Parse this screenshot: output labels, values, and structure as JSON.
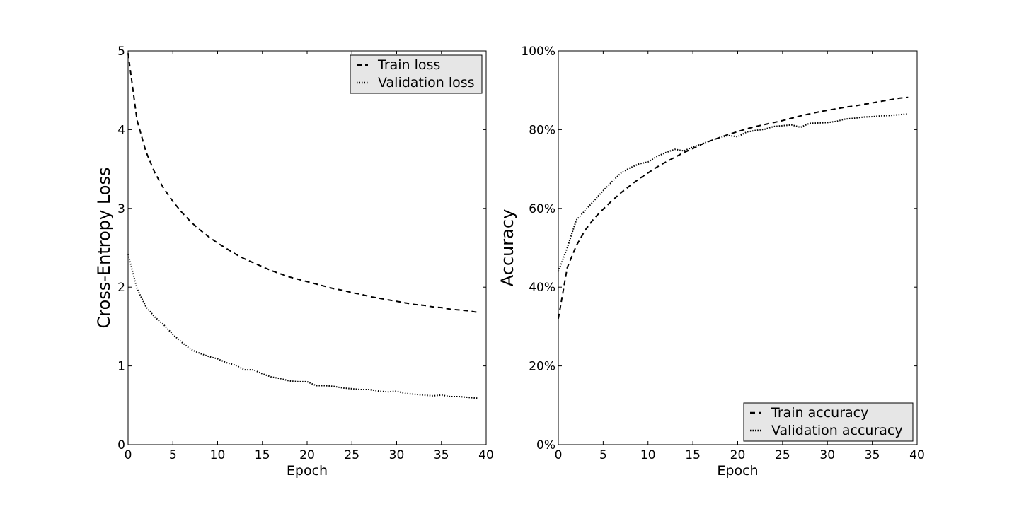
{
  "chart_data": [
    {
      "type": "line",
      "title": "",
      "xlabel": "Epoch",
      "ylabel": "Cross-Entropy Loss",
      "xlim": [
        0,
        40
      ],
      "ylim": [
        0,
        5
      ],
      "xticks": [
        0,
        5,
        10,
        15,
        20,
        25,
        30,
        35,
        40
      ],
      "xtick_labels": [
        "0",
        "5",
        "10",
        "15",
        "20",
        "25",
        "30",
        "35",
        "40"
      ],
      "yticks": [
        0,
        1,
        2,
        3,
        4,
        5
      ],
      "ytick_labels": [
        "0",
        "1",
        "2",
        "3",
        "4",
        "5"
      ],
      "grid": false,
      "legend_position": "top-right",
      "x": [
        0,
        1,
        2,
        3,
        4,
        5,
        6,
        7,
        8,
        9,
        10,
        11,
        12,
        13,
        14,
        15,
        16,
        17,
        18,
        19,
        20,
        21,
        22,
        23,
        24,
        25,
        26,
        27,
        28,
        29,
        30,
        31,
        32,
        33,
        34,
        35,
        36,
        37,
        38,
        39
      ],
      "series": [
        {
          "name": "Train loss",
          "style": "dashed",
          "color": "#000000",
          "values": [
            4.97,
            4.12,
            3.72,
            3.45,
            3.25,
            3.09,
            2.95,
            2.83,
            2.73,
            2.64,
            2.56,
            2.49,
            2.42,
            2.36,
            2.31,
            2.26,
            2.21,
            2.17,
            2.13,
            2.1,
            2.07,
            2.04,
            2.01,
            1.98,
            1.96,
            1.93,
            1.91,
            1.88,
            1.86,
            1.84,
            1.82,
            1.8,
            1.78,
            1.77,
            1.75,
            1.74,
            1.72,
            1.71,
            1.7,
            1.68
          ]
        },
        {
          "name": "Validation loss",
          "style": "dotted",
          "color": "#000000",
          "values": [
            2.42,
            1.98,
            1.75,
            1.62,
            1.52,
            1.4,
            1.3,
            1.21,
            1.16,
            1.12,
            1.09,
            1.04,
            1.01,
            0.95,
            0.95,
            0.9,
            0.86,
            0.84,
            0.81,
            0.8,
            0.8,
            0.75,
            0.75,
            0.74,
            0.72,
            0.71,
            0.7,
            0.7,
            0.68,
            0.67,
            0.68,
            0.65,
            0.64,
            0.63,
            0.62,
            0.63,
            0.61,
            0.61,
            0.6,
            0.59
          ]
        }
      ]
    },
    {
      "type": "line",
      "title": "",
      "xlabel": "Epoch",
      "ylabel": "Accuracy",
      "xlim": [
        0,
        40
      ],
      "ylim": [
        0,
        100
      ],
      "xticks": [
        0,
        5,
        10,
        15,
        20,
        25,
        30,
        35,
        40
      ],
      "xtick_labels": [
        "0",
        "5",
        "10",
        "15",
        "20",
        "25",
        "30",
        "35",
        "40"
      ],
      "yticks": [
        0,
        20,
        40,
        60,
        80,
        100
      ],
      "ytick_labels": [
        "0%",
        "20%",
        "40%",
        "60%",
        "80%",
        "100%"
      ],
      "grid": false,
      "legend_position": "bottom-right",
      "x": [
        0,
        1,
        2,
        3,
        4,
        5,
        6,
        7,
        8,
        9,
        10,
        11,
        12,
        13,
        14,
        15,
        16,
        17,
        18,
        19,
        20,
        21,
        22,
        23,
        24,
        25,
        26,
        27,
        28,
        29,
        30,
        31,
        32,
        33,
        34,
        35,
        36,
        37,
        38,
        39
      ],
      "series": [
        {
          "name": "Train accuracy",
          "style": "dashed",
          "color": "#000000",
          "values": [
            32,
            45,
            50.5,
            54.5,
            57.5,
            59.8,
            62,
            64,
            65.8,
            67.5,
            69,
            70.5,
            71.8,
            73,
            74.2,
            75.2,
            76.3,
            77.2,
            78,
            78.8,
            79.5,
            80.2,
            80.8,
            81.3,
            81.8,
            82.3,
            82.9,
            83.5,
            84,
            84.5,
            84.9,
            85.3,
            85.7,
            86,
            86.4,
            86.8,
            87.2,
            87.6,
            88,
            88.2
          ]
        },
        {
          "name": "Validation accuracy",
          "style": "dotted",
          "color": "#000000",
          "values": [
            44,
            50,
            57,
            59.5,
            62,
            64.5,
            66.8,
            69,
            70.3,
            71.3,
            71.8,
            73.2,
            74.2,
            75,
            74.6,
            75.6,
            76.4,
            77.2,
            78,
            78.5,
            78.2,
            79.4,
            79.8,
            80.1,
            80.8,
            81,
            81.2,
            80.6,
            81.6,
            81.7,
            81.8,
            82.1,
            82.7,
            82.9,
            83.2,
            83.3,
            83.5,
            83.6,
            83.8,
            84
          ]
        }
      ]
    }
  ]
}
